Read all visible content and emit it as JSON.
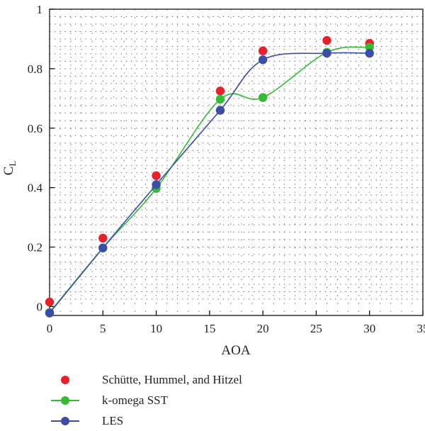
{
  "chart_data": {
    "type": "line",
    "xlabel": "AOA",
    "ylabel": "C",
    "ylabel_sub": "L",
    "xlim": [
      0,
      35
    ],
    "ylim": [
      -0.03,
      1.0
    ],
    "xticks": [
      "0",
      "5",
      "10",
      "15",
      "20",
      "25",
      "30",
      "35"
    ],
    "xtick_values": [
      0,
      5,
      10,
      15,
      20,
      25,
      30,
      35
    ],
    "yticks": [
      "0",
      "0.2",
      "0.4",
      "0.6",
      "0.8",
      "1"
    ],
    "ytick_values": [
      0,
      0.2,
      0.4,
      0.6,
      0.8,
      1.0
    ],
    "grid": "dotted",
    "legend_position": "below",
    "series": [
      {
        "name": "Schütte, Hummel, and Hitzel",
        "color": "#e8202a",
        "style": "markers",
        "x": [
          0,
          5,
          10,
          16,
          20,
          26,
          30
        ],
        "y": [
          0.015,
          0.23,
          0.44,
          0.725,
          0.86,
          0.895,
          0.885
        ]
      },
      {
        "name": "k-omega SST",
        "color": "#33bb33",
        "style": "line+markers",
        "x": [
          0,
          5,
          10,
          16,
          20,
          26,
          30
        ],
        "y": [
          -0.02,
          0.197,
          0.397,
          0.697,
          0.703,
          0.855,
          0.872
        ]
      },
      {
        "name": "LES",
        "color": "#3a4ea8",
        "style": "line+markers",
        "x": [
          0,
          5,
          10,
          16,
          20,
          26,
          30
        ],
        "y": [
          -0.022,
          0.197,
          0.41,
          0.66,
          0.83,
          0.852,
          0.852
        ]
      }
    ]
  }
}
